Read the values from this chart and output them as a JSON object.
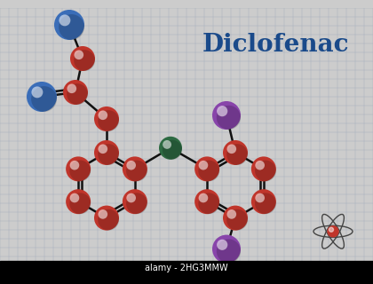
{
  "title": "Diclofenac",
  "title_color": "#1a4a8a",
  "title_fontsize": 20,
  "bg_color": "#cccccc",
  "grid_color": "#aab0be",
  "paper_color": "#e2e6ee",
  "watermark": "alamy - 2HG3MMW",
  "atom_colors": {
    "C": "#c0352b",
    "N": "#3a6db8",
    "NH": "#2d6a42",
    "Cl": "#8844aa",
    "bond": "#111111"
  },
  "figsize": [
    4.2,
    3.2
  ],
  "dpi": 100
}
